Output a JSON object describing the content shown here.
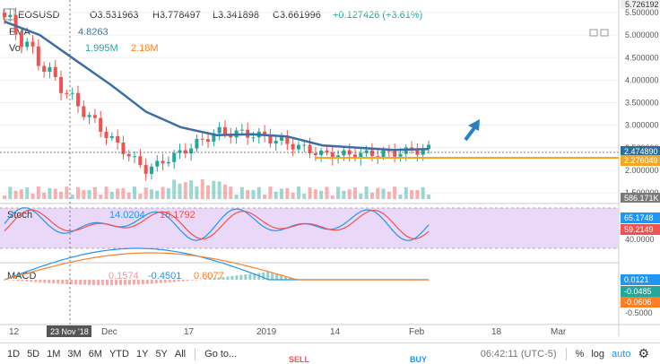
{
  "header": {
    "symbol": "EOSUSD",
    "open": "O3.531963",
    "high": "H3.778497",
    "low": "L3.341898",
    "close": "C3.661996",
    "change": "+0.127426 (+3.61%)",
    "ema_label": "EMA",
    "ema_value": "4.8263",
    "vol_label": "Vol",
    "vol_value1": "1.995M",
    "vol_value2": "2.18M",
    "stoch_label": "Stoch",
    "stoch_k": "14.0204",
    "stoch_d": "16.1792",
    "macd_label": "MACD",
    "macd_v1": "0.1574",
    "macd_v2": "-0.4501",
    "macd_v3": "0.6077"
  },
  "price_axis": {
    "ticks": [
      "5.500000",
      "5.000000",
      "4.500000",
      "4.000000",
      "3.500000",
      "3.000000",
      "2.500000",
      "2.000000",
      "1.500000"
    ],
    "top_label": "5.726192",
    "last_price": "2.474890",
    "support_price": "2.276049",
    "vol_price": "586.171K"
  },
  "stoch_axis": {
    "k_label": "65.1748",
    "d_label": "59.2149",
    "tick": "40.0000"
  },
  "macd_axis": {
    "v1": "0.0121",
    "v2": "-0.0485",
    "v3": "-0.0606",
    "tick": "-0.5000"
  },
  "time_axis": {
    "labels": [
      "12",
      "Dec",
      "17",
      "2019",
      "14",
      "Feb",
      "18",
      "Mar"
    ],
    "cursor_date": "23 Nov '18"
  },
  "bottom_bar": {
    "ranges": [
      "1D",
      "5D",
      "1M",
      "3M",
      "6M",
      "YTD",
      "1Y",
      "5Y",
      "All"
    ],
    "goto": "Go to...",
    "clock": "06:42:11 (UTC-5)",
    "pct": "%",
    "log": "log",
    "auto": "auto",
    "sell": "SELL",
    "buy": "BUY"
  },
  "colors": {
    "up": "#26a69a",
    "down": "#ef5350",
    "ema": "#3a6ea5",
    "support": "#f5a623",
    "stoch_k": "#2196f3",
    "stoch_d": "#ef5350",
    "stoch_bg": "#e8d5f7",
    "macd_line": "#2196f3",
    "signal_line": "#ff7f27",
    "arrow": "#2b7fc9"
  },
  "chart_data": {
    "type": "line",
    "title": "EOSUSD",
    "x": [
      "2018-11-12",
      "2018-11-19",
      "2018-11-26",
      "2018-12-03",
      "2018-12-10",
      "2018-12-17",
      "2018-12-24",
      "2018-12-31",
      "2019-01-07",
      "2019-01-14",
      "2019-01-21",
      "2019-01-28",
      "2019-02-04"
    ],
    "series": [
      {
        "name": "EMA",
        "values": [
          5.3,
          5.0,
          4.45,
          3.9,
          3.3,
          2.95,
          2.78,
          2.8,
          2.75,
          2.55,
          2.5,
          2.45,
          2.47
        ]
      }
    ],
    "close_path": [
      5.4,
      4.4,
      3.5,
      2.7,
      2.0,
      2.4,
      2.85,
      2.8,
      2.6,
      2.35,
      2.35,
      2.38,
      2.47
    ],
    "support_level": 2.276049,
    "ylim": [
      1.4,
      5.8
    ],
    "stoch": {
      "k_last": 65.1748,
      "d_last": 59.2149
    },
    "macd": {
      "values": [
        0.0121,
        -0.0485,
        -0.0606
      ]
    }
  }
}
